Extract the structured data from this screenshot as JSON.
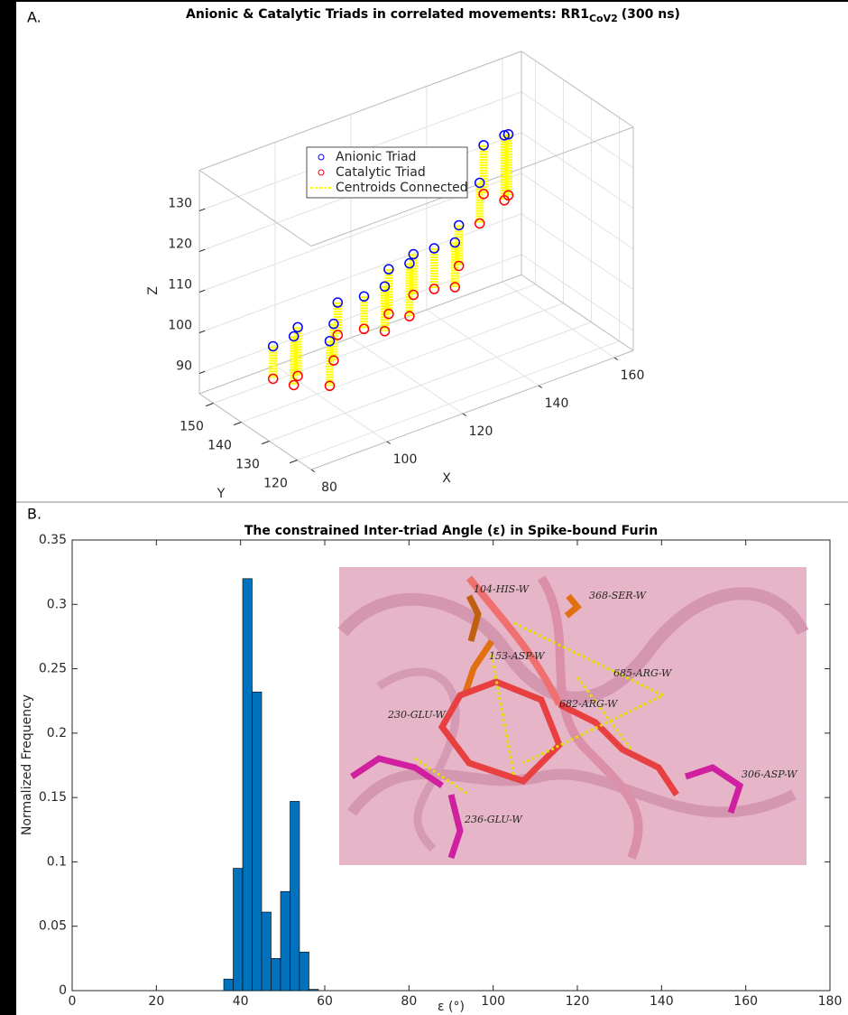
{
  "chart_data": [
    {
      "type": "scatter3d",
      "panel": "A.",
      "title": "Anionic & Catalytic Triads in correlated movements: RR1",
      "title_subscript": "CoV2",
      "title_suffix": "(300 ns)",
      "xlabel": "X",
      "ylabel": "Y",
      "zlabel": "Z",
      "xlim": [
        80,
        165
      ],
      "ylim": [
        115,
        155
      ],
      "zlim": [
        85,
        140
      ],
      "xticks": [
        80,
        100,
        120,
        140,
        160
      ],
      "yticks": [
        120,
        130,
        140,
        150
      ],
      "zticks": [
        90,
        100,
        110,
        120,
        130
      ],
      "grid": true,
      "series": [
        {
          "name": "Anionic Triad",
          "color": "#0000ff",
          "x": [
            81,
            85,
            89,
            93,
            97,
            101,
            105,
            109,
            113,
            117,
            121,
            125,
            129,
            133,
            137,
            141,
            145,
            149
          ],
          "y": [
            130,
            128,
            132,
            126,
            130,
            134,
            130,
            128,
            132,
            130,
            134,
            132,
            130,
            134,
            132,
            136,
            134,
            138
          ],
          "z": [
            108,
            110,
            109,
            107,
            108,
            110,
            112,
            114,
            115,
            116,
            115,
            116,
            117,
            118,
            128,
            134,
            136,
            133
          ]
        },
        {
          "name": "Catalytic Triad",
          "color": "#ff0000",
          "x": [
            81,
            85,
            89,
            93,
            97,
            101,
            105,
            109,
            113,
            117,
            121,
            125,
            129,
            133,
            137,
            141,
            145,
            149
          ],
          "y": [
            130,
            128,
            132,
            126,
            130,
            134,
            130,
            128,
            132,
            130,
            134,
            132,
            130,
            134,
            132,
            136,
            134,
            138
          ],
          "z": [
            100,
            98,
            97,
            96,
            99,
            102,
            104,
            103,
            104,
            103,
            105,
            106,
            106,
            108,
            118,
            122,
            120,
            118
          ]
        },
        {
          "name": "Centroids Connected",
          "color": "#ffff00"
        }
      ]
    },
    {
      "type": "histogram",
      "panel": "B.",
      "title": "The constrained Inter-triad Angle (ε) in Spike-bound Furin",
      "xlabel": "ε (°)",
      "ylabel": "Normalized Frequency",
      "bins": [
        36,
        38.25,
        40.5,
        42.75,
        45,
        47.25,
        49.5,
        51.75,
        54,
        56.25,
        58.5
      ],
      "values": [
        0.009,
        0.095,
        0.32,
        0.232,
        0.061,
        0.025,
        0.077,
        0.147,
        0.03,
        0.001
      ],
      "color": "#0072bd",
      "xlim": [
        0,
        180
      ],
      "ylim": [
        0,
        0.35
      ],
      "xticks": [
        0,
        20,
        40,
        60,
        80,
        100,
        120,
        140,
        160,
        180
      ],
      "yticks": [
        0,
        0.05,
        0.1,
        0.15,
        0.2,
        0.25,
        0.3,
        0.35
      ],
      "inset_labels": [
        {
          "text": "104-HIS-W",
          "color": "#222222"
        },
        {
          "text": "368-SER-W",
          "color": "#222222"
        },
        {
          "text": "153-ASP-W",
          "color": "#222222"
        },
        {
          "text": "685-ARG-W",
          "color": "#e8e000"
        },
        {
          "text": "682-ARG-W",
          "color": "#f0a000"
        },
        {
          "text": "230-GLU-W",
          "color": "#2020ff"
        },
        {
          "text": "236-GLU-W",
          "color": "#2020ff"
        },
        {
          "text": "306-ASP-W",
          "color": "#2020ff"
        }
      ]
    }
  ]
}
